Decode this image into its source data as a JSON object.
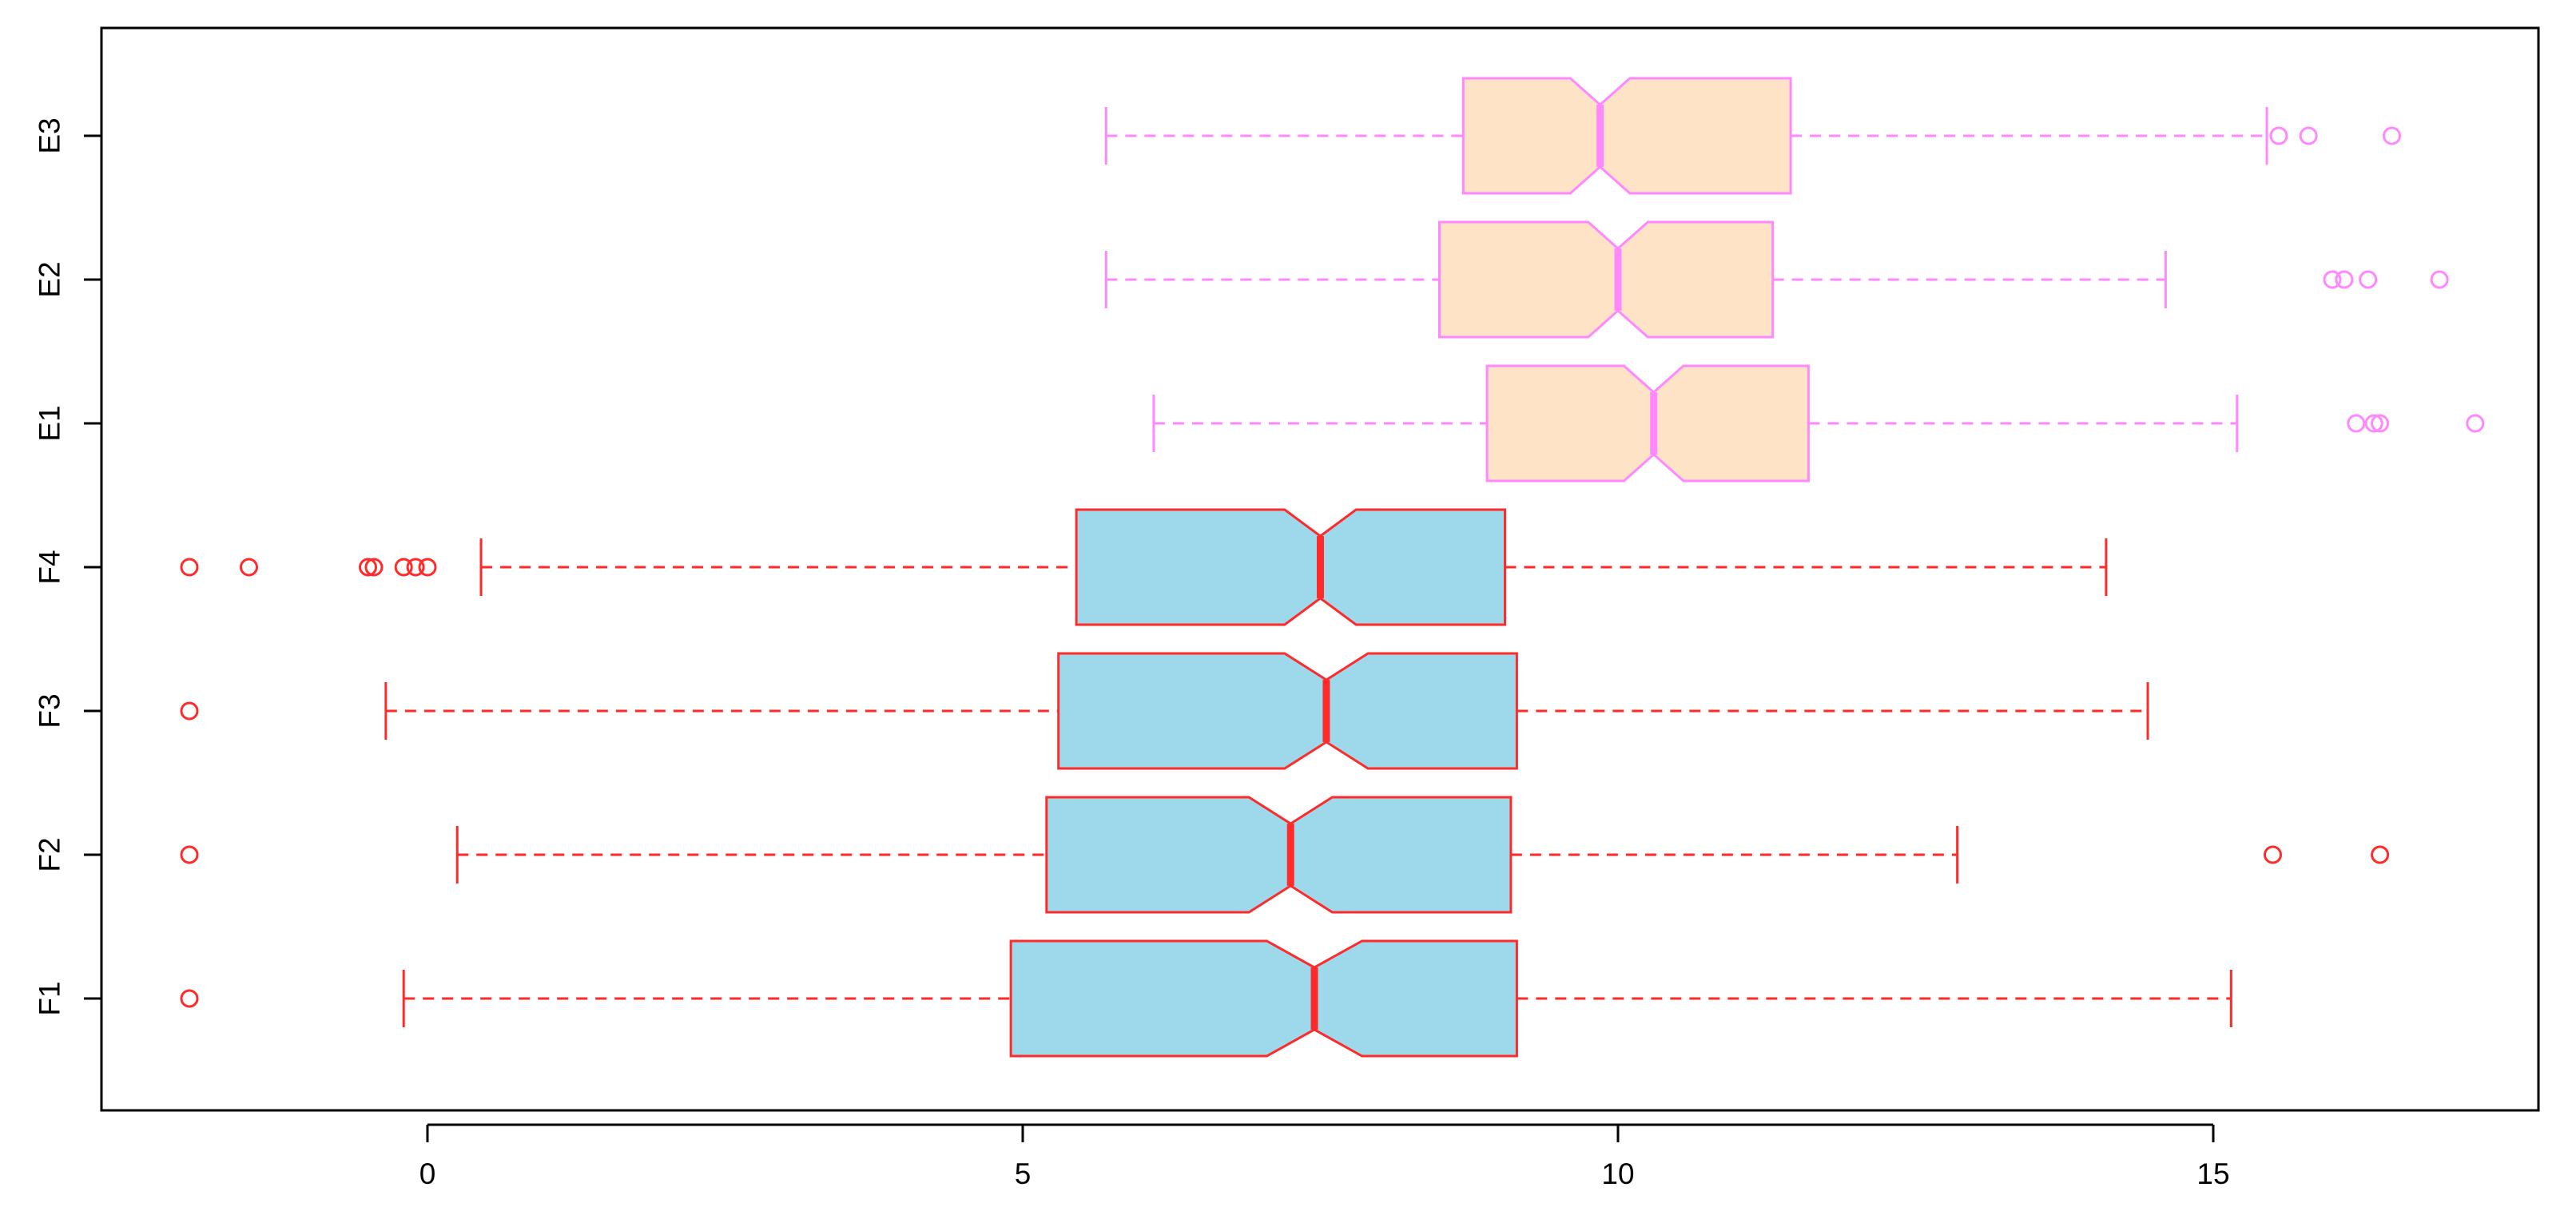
{
  "chart_data": {
    "type": "boxplot",
    "orientation": "horizontal",
    "notched": true,
    "title": "",
    "xlabel": "",
    "ylabel": "",
    "xlim": [
      -2.7,
      17.9
    ],
    "xticks": [
      0,
      5,
      10,
      15
    ],
    "xtick_labels": [
      "0",
      "5",
      "10",
      "15"
    ],
    "grid": false,
    "legend": "none",
    "colors": {
      "F_fill": "#9dd9ea",
      "F_border": "#ff2a2a",
      "E_fill": "#ffe3c7",
      "E_border": "#ff88ff",
      "axis": "#000000"
    },
    "series": [
      {
        "name": "F1",
        "group": "F",
        "whisker_low": -0.2,
        "q1": 4.9,
        "median": 7.45,
        "q3": 9.15,
        "whisker_high": 15.15,
        "notch_low": 7.05,
        "notch_high": 7.85,
        "outliers": [
          -2.0
        ]
      },
      {
        "name": "F2",
        "group": "F",
        "whisker_low": 0.25,
        "q1": 5.2,
        "median": 7.25,
        "q3": 9.1,
        "whisker_high": 12.85,
        "notch_low": 6.9,
        "notch_high": 7.6,
        "outliers": [
          -2.0,
          15.5,
          16.4
        ]
      },
      {
        "name": "F3",
        "group": "F",
        "whisker_low": -0.35,
        "q1": 5.3,
        "median": 7.55,
        "q3": 9.15,
        "whisker_high": 14.45,
        "notch_low": 7.2,
        "notch_high": 7.9,
        "outliers": [
          -2.0
        ]
      },
      {
        "name": "F4",
        "group": "F",
        "whisker_low": 0.45,
        "q1": 5.45,
        "median": 7.5,
        "q3": 9.05,
        "whisker_high": 14.1,
        "notch_low": 7.2,
        "notch_high": 7.8,
        "outliers": [
          -2.0,
          -1.5,
          -0.5,
          -0.45,
          -0.2,
          -0.1,
          0.0
        ]
      },
      {
        "name": "E1",
        "group": "E",
        "whisker_low": 6.1,
        "q1": 8.9,
        "median": 10.3,
        "q3": 11.6,
        "whisker_high": 15.2,
        "notch_low": 10.05,
        "notch_high": 10.55,
        "outliers": [
          16.2,
          16.35,
          16.4,
          17.2
        ]
      },
      {
        "name": "E2",
        "group": "E",
        "whisker_low": 5.7,
        "q1": 8.5,
        "median": 10.0,
        "q3": 11.3,
        "whisker_high": 14.6,
        "notch_low": 9.75,
        "notch_high": 10.25,
        "outliers": [
          16.0,
          16.1,
          16.3,
          16.9
        ]
      },
      {
        "name": "E3",
        "group": "E",
        "whisker_low": 5.7,
        "q1": 8.7,
        "median": 9.85,
        "q3": 11.45,
        "whisker_high": 15.45,
        "notch_low": 9.6,
        "notch_high": 10.1,
        "outliers": [
          15.55,
          15.8,
          16.5
        ]
      }
    ]
  }
}
